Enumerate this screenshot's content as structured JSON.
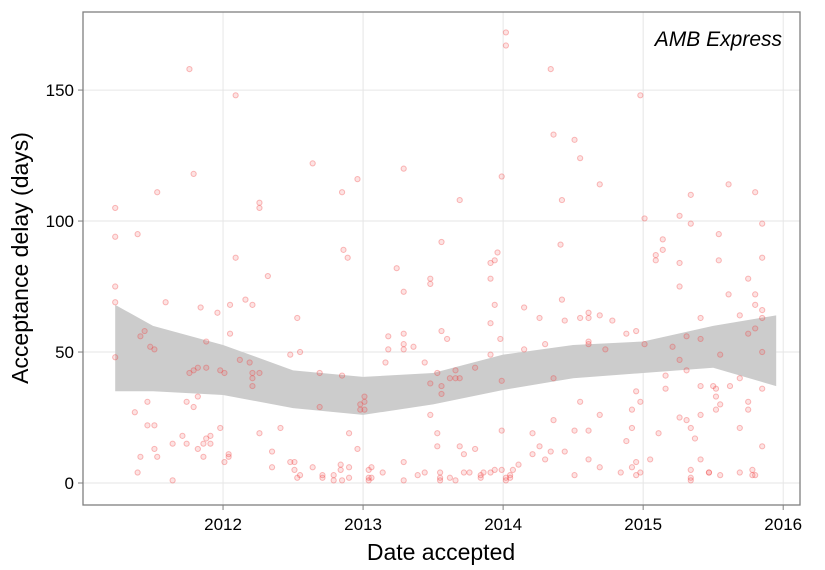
{
  "chart_data": {
    "type": "scatter",
    "annotation": "AMB Express",
    "x_label": "Date accepted",
    "y_label": "Acceptance delay (days)",
    "xlim": [
      2011.0,
      2016.12
    ],
    "ylim": [
      -8.4,
      179.8
    ],
    "xticks": [
      2012,
      2013,
      2014,
      2015,
      2016
    ],
    "yticks": [
      0,
      50,
      100,
      150
    ],
    "grid": true,
    "color": "#f04040",
    "x": [
      2011.23,
      2011.23,
      2011.23,
      2011.23,
      2011.23,
      2011.37,
      2011.39,
      2011.39,
      2011.41,
      2011.41,
      2011.44,
      2011.46,
      2011.46,
      2011.48,
      2011.51,
      2011.51,
      2011.51,
      2011.53,
      2011.53,
      2011.59,
      2011.64,
      2011.64,
      2011.71,
      2011.74,
      2011.74,
      2011.76,
      2011.76,
      2011.79,
      2011.79,
      2011.79,
      2011.82,
      2011.82,
      2011.82,
      2011.84,
      2011.86,
      2011.86,
      2011.88,
      2011.88,
      2011.88,
      2011.91,
      2011.91,
      2011.96,
      2011.98,
      2011.98,
      2012.01,
      2012.01,
      2012.04,
      2012.04,
      2012.05,
      2012.05,
      2012.09,
      2012.09,
      2012.12,
      2012.16,
      2012.19,
      2012.21,
      2012.21,
      2012.21,
      2012.21,
      2012.26,
      2012.26,
      2012.26,
      2012.26,
      2012.32,
      2012.35,
      2012.35,
      2012.41,
      2012.48,
      2012.48,
      2012.51,
      2012.51,
      2012.53,
      2012.53,
      2012.55,
      2012.55,
      2012.64,
      2012.64,
      2012.69,
      2012.69,
      2012.71,
      2012.71,
      2012.79,
      2012.79,
      2012.84,
      2012.84,
      2012.85,
      2012.85,
      2012.85,
      2012.86,
      2012.89,
      2012.9,
      2012.9,
      2012.9,
      2012.96,
      2012.96,
      2012.98,
      2012.98,
      2013.01,
      2013.01,
      2013.01,
      2013.04,
      2013.04,
      2013.04,
      2013.06,
      2013.06,
      2013.14,
      2013.16,
      2013.18,
      2013.18,
      2013.24,
      2013.29,
      2013.29,
      2013.29,
      2013.29,
      2013.29,
      2013.29,
      2013.29,
      2013.36,
      2013.39,
      2013.44,
      2013.44,
      2013.48,
      2013.48,
      2013.48,
      2013.48,
      2013.53,
      2013.53,
      2013.53,
      2013.55,
      2013.55,
      2013.55,
      2013.56,
      2013.56,
      2013.56,
      2013.56,
      2013.6,
      2013.62,
      2013.62,
      2013.66,
      2013.66,
      2013.66,
      2013.69,
      2013.69,
      2013.69,
      2013.72,
      2013.72,
      2013.76,
      2013.8,
      2013.8,
      2013.84,
      2013.84,
      2013.86,
      2013.91,
      2013.91,
      2013.91,
      2013.91,
      2013.91,
      2013.94,
      2013.94,
      2013.94,
      2013.96,
      2013.98,
      2013.99,
      2013.99,
      2013.99,
      2013.99,
      2014.02,
      2014.02,
      2014.02,
      2014.02,
      2014.05,
      2014.05,
      2014.07,
      2014.11,
      2014.15,
      2014.15,
      2014.21,
      2014.21,
      2014.26,
      2014.26,
      2014.3,
      2014.3,
      2014.34,
      2014.34,
      2014.36,
      2014.36,
      2014.36,
      2014.41,
      2014.42,
      2014.42,
      2014.44,
      2014.44,
      2014.51,
      2014.51,
      2014.51,
      2014.55,
      2014.55,
      2014.55,
      2014.61,
      2014.61,
      2014.61,
      2014.61,
      2014.61,
      2014.61,
      2014.69,
      2014.69,
      2014.69,
      2014.69,
      2014.73,
      2014.78,
      2014.84,
      2014.88,
      2014.88,
      2014.92,
      2014.92,
      2014.92,
      2014.95,
      2014.95,
      2014.95,
      2014.95,
      2014.98,
      2014.98,
      2014.98,
      2015.01,
      2015.01,
      2015.05,
      2015.09,
      2015.09,
      2015.11,
      2015.14,
      2015.14,
      2015.16,
      2015.16,
      2015.21,
      2015.26,
      2015.26,
      2015.26,
      2015.26,
      2015.26,
      2015.31,
      2015.31,
      2015.31,
      2015.34,
      2015.34,
      2015.34,
      2015.34,
      2015.34,
      2015.34,
      2015.37,
      2015.41,
      2015.41,
      2015.41,
      2015.41,
      2015.41,
      2015.47,
      2015.47,
      2015.5,
      2015.52,
      2015.52,
      2015.52,
      2015.54,
      2015.54,
      2015.55,
      2015.55,
      2015.55,
      2015.61,
      2015.61,
      2015.62,
      2015.69,
      2015.69,
      2015.69,
      2015.69,
      2015.75,
      2015.75,
      2015.75,
      2015.75,
      2015.78,
      2015.78,
      2015.8,
      2015.8,
      2015.8,
      2015.8,
      2015.8,
      2015.85,
      2015.85,
      2015.85,
      2015.85,
      2015.85,
      2015.85,
      2015.85
    ],
    "values": [
      105,
      94,
      75,
      69,
      48,
      27,
      95,
      4,
      56,
      10,
      58,
      31,
      22,
      52,
      51,
      22,
      13,
      111,
      10,
      69,
      1,
      15,
      18,
      31,
      15,
      158,
      42,
      118,
      43,
      29,
      33,
      44,
      13,
      67,
      10,
      15,
      54,
      17,
      44,
      18,
      15,
      65,
      43,
      21,
      42,
      8,
      10,
      11,
      57,
      68,
      86,
      148,
      47,
      70,
      46,
      40,
      42,
      37,
      68,
      105,
      107,
      42,
      19,
      79,
      6,
      12,
      21,
      49,
      8,
      8,
      5,
      63,
      2,
      3,
      50,
      122,
      6,
      42,
      29,
      3,
      2,
      1,
      3,
      5,
      7,
      111,
      41,
      1,
      89,
      86,
      19,
      2,
      6,
      116,
      13,
      28,
      30,
      28,
      33,
      31,
      1,
      2,
      5,
      2,
      6,
      4,
      46,
      51,
      56,
      82,
      53,
      57,
      51,
      120,
      73,
      8,
      1,
      52,
      3,
      4,
      46,
      38,
      78,
      26,
      76,
      42,
      14,
      19,
      2,
      4,
      1,
      58,
      92,
      34,
      37,
      55,
      2,
      40,
      1,
      43,
      40,
      108,
      40,
      14,
      11,
      4,
      4,
      13,
      44,
      2,
      3,
      4,
      49,
      61,
      78,
      84,
      4,
      68,
      85,
      5,
      88,
      55,
      117,
      39,
      20,
      5,
      172,
      2,
      1,
      167,
      2,
      3,
      5,
      7,
      51,
      67,
      11,
      19,
      63,
      14,
      9,
      53,
      158,
      12,
      133,
      40,
      24,
      91,
      70,
      108,
      62,
      12,
      131,
      20,
      3,
      124,
      63,
      31,
      53,
      63,
      54,
      20,
      65,
      9,
      6,
      114,
      26,
      64,
      51,
      62,
      4,
      57,
      16,
      21,
      28,
      6,
      58,
      35,
      3,
      8,
      148,
      4,
      31,
      101,
      53,
      9,
      85,
      87,
      19,
      93,
      89,
      36,
      41,
      52,
      102,
      84,
      75,
      25,
      47,
      56,
      24,
      43,
      110,
      99,
      2,
      1,
      21,
      5,
      17,
      63,
      55,
      37,
      26,
      9,
      4,
      4,
      37,
      28,
      36,
      33,
      95,
      85,
      30,
      3,
      49,
      114,
      72,
      37,
      64,
      40,
      21,
      4,
      78,
      28,
      31,
      57,
      3,
      5,
      111,
      72,
      59,
      68,
      3,
      66,
      50,
      36,
      14,
      99,
      86,
      63
    ],
    "band": {
      "color": "#cccccc",
      "x": [
        2011.23,
        2011.5,
        2012.0,
        2012.5,
        2013.0,
        2013.5,
        2014.0,
        2014.5,
        2015.0,
        2015.5,
        2015.95
      ],
      "lower": [
        35,
        35,
        33.6,
        28.6,
        26,
        30,
        35.5,
        40,
        42,
        44,
        37
      ],
      "upper": [
        68,
        60,
        52.7,
        43,
        40.5,
        42,
        49,
        52.7,
        54,
        60,
        64
      ]
    }
  }
}
